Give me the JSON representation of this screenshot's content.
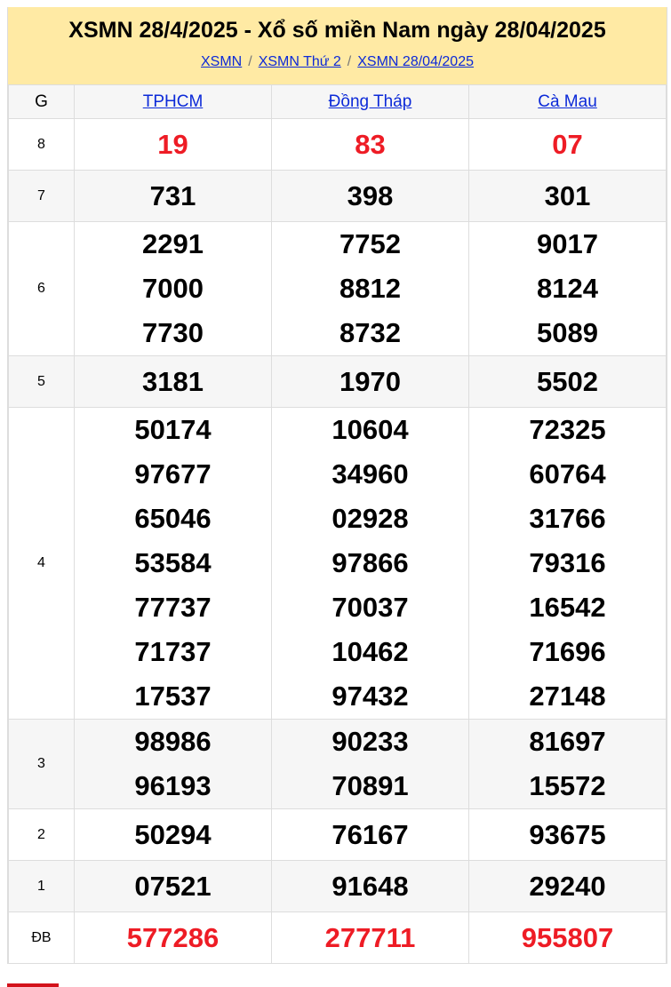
{
  "header": {
    "title": "XSMN 28/4/2025 - Xổ số miền Nam ngày 28/04/2025",
    "breadcrumbs": [
      "XSMN",
      "XSMN Thứ 2",
      "XSMN 28/04/2025"
    ],
    "separator": "/"
  },
  "table": {
    "g_label": "G",
    "provinces": [
      "TPHCM",
      "Đồng Tháp",
      "Cà Mau"
    ],
    "rows": [
      {
        "prize": "8",
        "highlight": true,
        "values": [
          [
            "19"
          ],
          [
            "83"
          ],
          [
            "07"
          ]
        ]
      },
      {
        "prize": "7",
        "values": [
          [
            "731"
          ],
          [
            "398"
          ],
          [
            "301"
          ]
        ]
      },
      {
        "prize": "6",
        "values": [
          [
            "2291",
            "7000",
            "7730"
          ],
          [
            "7752",
            "8812",
            "8732"
          ],
          [
            "9017",
            "8124",
            "5089"
          ]
        ]
      },
      {
        "prize": "5",
        "values": [
          [
            "3181"
          ],
          [
            "1970"
          ],
          [
            "5502"
          ]
        ]
      },
      {
        "prize": "4",
        "values": [
          [
            "50174",
            "97677",
            "65046",
            "53584",
            "77737",
            "71737",
            "17537"
          ],
          [
            "10604",
            "34960",
            "02928",
            "97866",
            "70037",
            "10462",
            "97432"
          ],
          [
            "72325",
            "60764",
            "31766",
            "79316",
            "16542",
            "71696",
            "27148"
          ]
        ]
      },
      {
        "prize": "3",
        "values": [
          [
            "98986",
            "96193"
          ],
          [
            "90233",
            "70891"
          ],
          [
            "81697",
            "15572"
          ]
        ]
      },
      {
        "prize": "2",
        "values": [
          [
            "50294"
          ],
          [
            "76167"
          ],
          [
            "93675"
          ]
        ]
      },
      {
        "prize": "1",
        "values": [
          [
            "07521"
          ],
          [
            "91648"
          ],
          [
            "29240"
          ]
        ]
      },
      {
        "prize": "ĐB",
        "highlight": true,
        "values": [
          [
            "577286"
          ],
          [
            "277711"
          ],
          [
            "955807"
          ]
        ]
      }
    ]
  },
  "colors": {
    "header_bg": "#ffeaa4",
    "link": "#0c2ad8",
    "highlight": "#ee1c25"
  }
}
